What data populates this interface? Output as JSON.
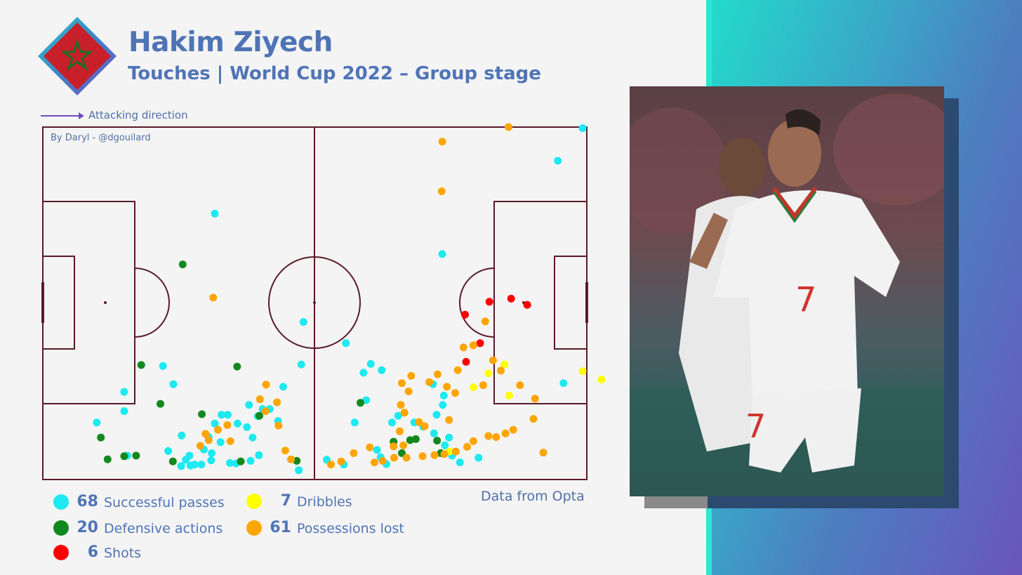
{
  "header": {
    "title": "Hakim Ziyech",
    "subtitle": "Touches | World Cup 2022 – Group stage"
  },
  "direction_label": "Attacking direction",
  "credit": "By Daryl - @dgouilard",
  "source": "Data from Opta",
  "colors": {
    "title": "#4f74b6",
    "pitch_lines": "#5a1a2a",
    "successful_passes": "#1de9f0",
    "defensive_actions": "#12891e",
    "shots": "#ff0000",
    "dribbles": "#ffff00",
    "possessions_lost": "#ffa500",
    "flag_red": "#c8202a",
    "flag_star": "#1f6b2a"
  },
  "photo": {
    "description": "player-celebration-photo"
  },
  "legend": [
    {
      "key": "successful_passes",
      "count": "68",
      "label": "Successful passes"
    },
    {
      "key": "defensive_actions",
      "count": "20",
      "label": "Defensive actions"
    },
    {
      "key": "shots",
      "count": "6",
      "label": "Shots"
    },
    {
      "key": "dribbles",
      "count": "7",
      "label": "Dribbles"
    },
    {
      "key": "possessions_lost",
      "count": "61",
      "label": "Possessions lost"
    }
  ],
  "chart_data": {
    "type": "scatter",
    "xlim": [
      0,
      105
    ],
    "ylim": [
      0,
      68
    ],
    "series": [
      {
        "name": "Successful passes",
        "key": "successful_passes",
        "points": [
          [
            104.2,
            67.8
          ],
          [
            99.4,
            61.5
          ],
          [
            33.2,
            51.3
          ],
          [
            77.1,
            43.5
          ],
          [
            50.3,
            30.4
          ],
          [
            58.5,
            26.3
          ],
          [
            100.5,
            18.6
          ],
          [
            23.2,
            21.9
          ],
          [
            25.2,
            18.4
          ],
          [
            15.7,
            16.9
          ],
          [
            15.7,
            13.2
          ],
          [
            63.3,
            22.3
          ],
          [
            61.9,
            20.6
          ],
          [
            65.4,
            21.1
          ],
          [
            75.3,
            18.4
          ],
          [
            77.4,
            16.2
          ],
          [
            62.4,
            15.3
          ],
          [
            49.9,
            22.2
          ],
          [
            46.4,
            17.9
          ],
          [
            43.8,
            13.6
          ],
          [
            45.4,
            11.3
          ],
          [
            41.5,
            12.2
          ],
          [
            42.4,
            13.6
          ],
          [
            39.8,
            14.4
          ],
          [
            39.4,
            10.1
          ],
          [
            37.6,
            10.8
          ],
          [
            35.7,
            12.5
          ],
          [
            34.5,
            12.5
          ],
          [
            33.2,
            10.8
          ],
          [
            32.0,
            8.2
          ],
          [
            31.1,
            5.8
          ],
          [
            34.3,
            7.2
          ],
          [
            32.6,
            5.1
          ],
          [
            30.6,
            2.9
          ],
          [
            29.3,
            2.9
          ],
          [
            27.6,
            3.8
          ],
          [
            24.2,
            5.5
          ],
          [
            16.3,
            4.6
          ],
          [
            10.4,
            11.0
          ],
          [
            26.8,
            8.5
          ],
          [
            40.5,
            8.1
          ],
          [
            41.7,
            4.7
          ],
          [
            40.1,
            3.6
          ],
          [
            37.3,
            3.1
          ],
          [
            36.1,
            3.2
          ],
          [
            32.5,
            3.7
          ],
          [
            28.3,
            4.6
          ],
          [
            28.5,
            2.7
          ],
          [
            26.7,
            2.6
          ],
          [
            49.4,
            1.8
          ],
          [
            54.8,
            3.8
          ],
          [
            58.1,
            2.9
          ],
          [
            64.5,
            5.7
          ],
          [
            65.2,
            4.3
          ],
          [
            66.3,
            3.0
          ],
          [
            60.2,
            11.0
          ],
          [
            68.6,
            12.3
          ],
          [
            67.4,
            11.0
          ],
          [
            71.7,
            11.0
          ],
          [
            73.4,
            10.2
          ],
          [
            75.5,
            8.9
          ],
          [
            76.0,
            12.5
          ],
          [
            77.2,
            14.4
          ],
          [
            78.4,
            8.1
          ],
          [
            77.6,
            6.6
          ],
          [
            79.0,
            4.6
          ],
          [
            80.5,
            3.3
          ],
          [
            84.1,
            4.2
          ]
        ]
      },
      {
        "name": "Defensive actions",
        "key": "defensive_actions",
        "points": [
          [
            27.0,
            41.5
          ],
          [
            19.0,
            22.1
          ],
          [
            37.5,
            21.8
          ],
          [
            22.7,
            14.6
          ],
          [
            30.7,
            12.6
          ],
          [
            41.8,
            12.3
          ],
          [
            11.2,
            8.1
          ],
          [
            15.7,
            4.5
          ],
          [
            18.0,
            4.6
          ],
          [
            12.5,
            3.9
          ],
          [
            25.1,
            3.5
          ],
          [
            38.2,
            3.5
          ],
          [
            49.0,
            3.6
          ],
          [
            61.3,
            14.8
          ],
          [
            67.7,
            7.3
          ],
          [
            70.9,
            7.6
          ],
          [
            72.0,
            7.8
          ],
          [
            76.1,
            7.5
          ],
          [
            76.8,
            5.1
          ],
          [
            69.3,
            5.1
          ]
        ]
      },
      {
        "name": "Shots",
        "key": "shots",
        "points": [
          [
            86.2,
            34.3
          ],
          [
            90.4,
            34.9
          ],
          [
            81.5,
            31.8
          ],
          [
            81.7,
            22.7
          ],
          [
            84.4,
            26.3
          ],
          [
            93.5,
            33.7
          ]
        ]
      },
      {
        "name": "Dribbles",
        "key": "dribbles",
        "points": [
          [
            89.1,
            22.2
          ],
          [
            86.0,
            20.5
          ],
          [
            104.2,
            20.9
          ],
          [
            107.8,
            19.3
          ],
          [
            83.1,
            17.8
          ],
          [
            90.0,
            16.2
          ],
          [
            78.5,
            5.4
          ]
        ]
      },
      {
        "name": "Possessions lost",
        "key": "possessions_lost",
        "points": [
          [
            89.9,
            68.0
          ],
          [
            77.1,
            65.2
          ],
          [
            77.0,
            55.6
          ],
          [
            32.9,
            35.1
          ],
          [
            85.4,
            30.5
          ],
          [
            83.1,
            25.9
          ],
          [
            81.2,
            25.5
          ],
          [
            80.1,
            21.1
          ],
          [
            86.9,
            23.0
          ],
          [
            88.4,
            21.0
          ],
          [
            85.0,
            18.2
          ],
          [
            92.1,
            18.2
          ],
          [
            79.6,
            16.7
          ],
          [
            78.0,
            17.9
          ],
          [
            76.2,
            20.3
          ],
          [
            74.6,
            18.8
          ],
          [
            71.1,
            20.0
          ],
          [
            69.3,
            18.6
          ],
          [
            70.6,
            17.0
          ],
          [
            69.1,
            14.4
          ],
          [
            69.8,
            12.9
          ],
          [
            72.6,
            11.1
          ],
          [
            73.7,
            10.3
          ],
          [
            68.9,
            9.3
          ],
          [
            69.6,
            6.6
          ],
          [
            67.7,
            6.4
          ],
          [
            63.1,
            6.2
          ],
          [
            64.0,
            3.3
          ],
          [
            65.6,
            3.6
          ],
          [
            67.8,
            4.2
          ],
          [
            70.2,
            4.2
          ],
          [
            73.3,
            4.5
          ],
          [
            75.6,
            4.7
          ],
          [
            77.5,
            4.9
          ],
          [
            79.7,
            5.4
          ],
          [
            81.9,
            6.3
          ],
          [
            83.1,
            7.4
          ],
          [
            86.0,
            8.4
          ],
          [
            87.5,
            8.2
          ],
          [
            89.3,
            8.9
          ],
          [
            90.8,
            9.6
          ],
          [
            95.0,
            15.6
          ],
          [
            94.7,
            11.7
          ],
          [
            96.6,
            5.2
          ],
          [
            60.0,
            5.1
          ],
          [
            57.6,
            3.5
          ],
          [
            55.6,
            2.9
          ],
          [
            43.1,
            18.3
          ],
          [
            41.9,
            15.5
          ],
          [
            45.2,
            14.9
          ],
          [
            43.0,
            13.2
          ],
          [
            45.5,
            10.4
          ],
          [
            35.6,
            10.5
          ],
          [
            33.8,
            9.6
          ],
          [
            31.4,
            8.8
          ],
          [
            30.4,
            6.5
          ],
          [
            32.0,
            7.6
          ],
          [
            36.2,
            7.4
          ],
          [
            46.8,
            5.6
          ],
          [
            47.9,
            3.9
          ],
          [
            78.4,
            11.5
          ]
        ]
      }
    ]
  }
}
